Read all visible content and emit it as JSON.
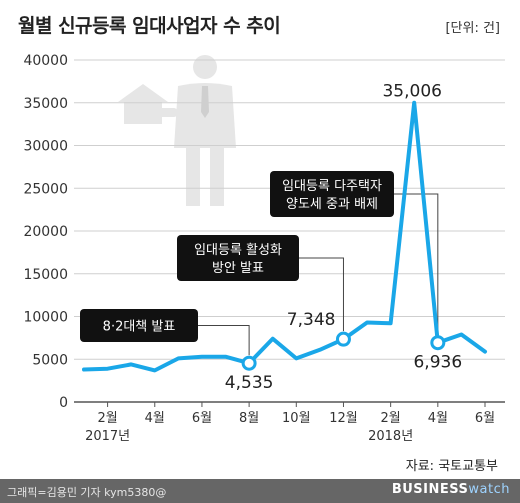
{
  "title": "월별 신규등록 임대사업자 수 추이",
  "unit": "[단위: 건]",
  "source": "자료: 국토교통부",
  "credit": "그래픽=김용민 기자 kym5380@",
  "logo": {
    "main": "BUSINESS",
    "sub": "watch"
  },
  "colors": {
    "line": "#1aa7e8",
    "grid": "#cfcfcf",
    "footer": "#666666"
  },
  "chart_data": {
    "type": "line",
    "title": "월별 신규등록 임대사업자 수 추이",
    "ylim": [
      0,
      40000
    ],
    "yticks": [
      "40000",
      "35000",
      "30000",
      "25000",
      "20000",
      "15000",
      "10000",
      "5000",
      "0"
    ],
    "grid": true,
    "x": [
      "2017-01",
      "2017-02",
      "2017-03",
      "2017-04",
      "2017-05",
      "2017-06",
      "2017-07",
      "2017-08",
      "2017-09",
      "2017-10",
      "2017-11",
      "2017-12",
      "2018-01",
      "2018-02",
      "2018-03",
      "2018-04",
      "2018-05",
      "2018-06"
    ],
    "values": [
      3800,
      3900,
      4400,
      3700,
      5100,
      5300,
      5300,
      4535,
      7400,
      5100,
      6100,
      7348,
      9300,
      9200,
      35006,
      6936,
      7900,
      5900
    ],
    "xticks": [
      {
        "label": "2월",
        "year": "2017년",
        "x": "2017-02"
      },
      {
        "label": "4월",
        "x": "2017-04"
      },
      {
        "label": "6월",
        "x": "2017-06"
      },
      {
        "label": "8월",
        "x": "2017-08"
      },
      {
        "label": "10월",
        "x": "2017-10"
      },
      {
        "label": "12월",
        "x": "2017-12"
      },
      {
        "label": "2월",
        "year": "2018년",
        "x": "2018-02"
      },
      {
        "label": "4월",
        "x": "2018-04"
      },
      {
        "label": "6월",
        "x": "2018-06"
      }
    ],
    "data_labels": [
      {
        "x": "2017-08",
        "text": "4,535"
      },
      {
        "x": "2017-12",
        "text": "7,348"
      },
      {
        "x": "2018-03",
        "text": "35,006"
      },
      {
        "x": "2018-04",
        "text": "6,936"
      }
    ],
    "annotations": [
      {
        "x": "2017-08",
        "lines": [
          "8·2대책 발표"
        ]
      },
      {
        "x": "2017-12",
        "lines": [
          "임대등록 활성화",
          "방안 발표"
        ]
      },
      {
        "x": "2018-04",
        "lines": [
          "임대등록 다주택자",
          "양도세 중과 배제"
        ]
      }
    ]
  }
}
